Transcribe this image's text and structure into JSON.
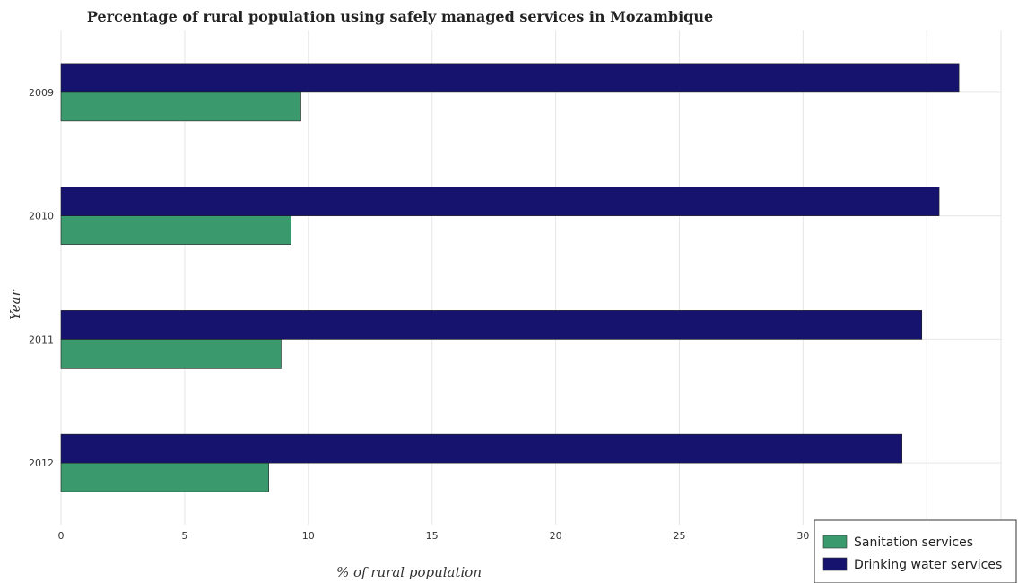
{
  "chart_data": {
    "type": "bar",
    "orientation": "horizontal",
    "title": "Percentage of rural population using safely managed services in Mozambique",
    "xlabel": "% of rural population",
    "ylabel": "Year",
    "categories": [
      "2009",
      "2010",
      "2011",
      "2012"
    ],
    "xlim": [
      0,
      38
    ],
    "xticks": [
      0,
      5,
      10,
      15,
      20,
      25,
      30,
      35
    ],
    "grid": true,
    "legend_position": "bottom-right",
    "series": [
      {
        "name": "Sanitation services",
        "color": "#3a9a6e",
        "values": [
          8.4,
          8.9,
          9.3,
          9.7
        ]
      },
      {
        "name": "Drinking water services",
        "color": "#15136e",
        "values": [
          34.0,
          34.8,
          35.5,
          36.3
        ]
      }
    ]
  }
}
